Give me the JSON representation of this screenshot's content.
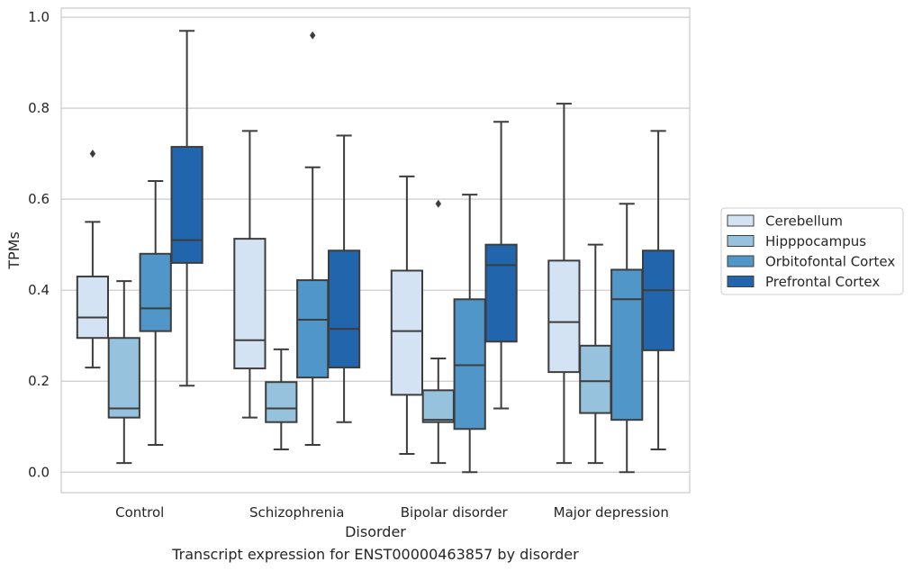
{
  "chart_data": {
    "type": "box",
    "caption": "Transcript expression for ENST00000463857 by disorder",
    "xlabel": "Disorder",
    "ylabel": "TPMs",
    "ylim": [
      -0.045,
      1.02
    ],
    "yticks": [
      "0.0",
      "0.2",
      "0.4",
      "0.6",
      "0.8",
      "1.0"
    ],
    "grid": "horizontal",
    "legend_position": "right",
    "categories": [
      "Control",
      "Schizophrenia",
      "Bipolar disorder",
      "Major depression"
    ],
    "series": [
      {
        "name": "Cerebellum",
        "color": "#d4e3f3",
        "boxes": [
          {
            "whislo": 0.23,
            "q1": 0.295,
            "med": 0.34,
            "q3": 0.43,
            "whishi": 0.55,
            "fliers": [
              0.7
            ]
          },
          {
            "whislo": 0.12,
            "q1": 0.228,
            "med": 0.29,
            "q3": 0.513,
            "whishi": 0.75,
            "fliers": []
          },
          {
            "whislo": 0.04,
            "q1": 0.17,
            "med": 0.31,
            "q3": 0.443,
            "whishi": 0.65,
            "fliers": []
          },
          {
            "whislo": 0.02,
            "q1": 0.22,
            "med": 0.33,
            "q3": 0.465,
            "whishi": 0.81,
            "fliers": []
          }
        ]
      },
      {
        "name": "Hipppocampus",
        "color": "#96c2dd",
        "boxes": [
          {
            "whislo": 0.02,
            "q1": 0.12,
            "med": 0.14,
            "q3": 0.295,
            "whishi": 0.42,
            "fliers": []
          },
          {
            "whislo": 0.05,
            "q1": 0.11,
            "med": 0.14,
            "q3": 0.198,
            "whishi": 0.27,
            "fliers": []
          },
          {
            "whislo": 0.02,
            "q1": 0.11,
            "med": 0.115,
            "q3": 0.18,
            "whishi": 0.25,
            "fliers": [
              0.59
            ]
          },
          {
            "whislo": 0.02,
            "q1": 0.13,
            "med": 0.2,
            "q3": 0.278,
            "whishi": 0.5,
            "fliers": []
          }
        ]
      },
      {
        "name": "Orbitofontal Cortex",
        "color": "#5096c8",
        "boxes": [
          {
            "whislo": 0.06,
            "q1": 0.31,
            "med": 0.36,
            "q3": 0.48,
            "whishi": 0.64,
            "fliers": []
          },
          {
            "whislo": 0.06,
            "q1": 0.208,
            "med": 0.335,
            "q3": 0.422,
            "whishi": 0.67,
            "fliers": [
              0.96
            ]
          },
          {
            "whislo": 0.0,
            "q1": 0.095,
            "med": 0.235,
            "q3": 0.38,
            "whishi": 0.61,
            "fliers": []
          },
          {
            "whislo": 0.0,
            "q1": 0.115,
            "med": 0.38,
            "q3": 0.445,
            "whishi": 0.59,
            "fliers": []
          }
        ]
      },
      {
        "name": "Prefrontal Cortex",
        "color": "#2166ac",
        "boxes": [
          {
            "whislo": 0.19,
            "q1": 0.46,
            "med": 0.51,
            "q3": 0.715,
            "whishi": 0.97,
            "fliers": []
          },
          {
            "whislo": 0.11,
            "q1": 0.23,
            "med": 0.315,
            "q3": 0.487,
            "whishi": 0.74,
            "fliers": []
          },
          {
            "whislo": 0.14,
            "q1": 0.287,
            "med": 0.455,
            "q3": 0.5,
            "whishi": 0.77,
            "fliers": []
          },
          {
            "whislo": 0.05,
            "q1": 0.268,
            "med": 0.4,
            "q3": 0.487,
            "whishi": 0.75,
            "fliers": []
          }
        ]
      }
    ]
  }
}
